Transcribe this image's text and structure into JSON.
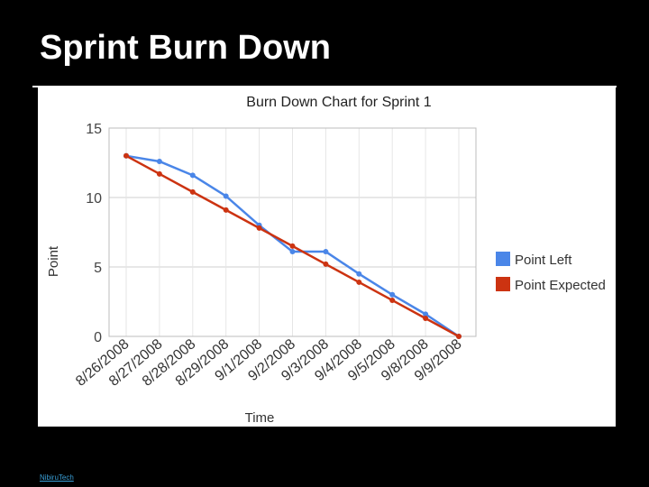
{
  "slide": {
    "title": "Sprint Burn Down",
    "footer": "NibiruTech"
  },
  "chart_data": {
    "type": "line",
    "title": "Burn Down Chart for Sprint 1",
    "xlabel": "Time",
    "ylabel": "Point",
    "ylim": [
      0,
      15
    ],
    "yticks": [
      "0",
      "5",
      "10",
      "15"
    ],
    "grid": true,
    "legend_position": "right",
    "categories": [
      "8/26/2008",
      "8/27/2008",
      "8/28/2008",
      "8/29/2008",
      "9/1/2008",
      "9/2/2008",
      "9/3/2008",
      "9/4/2008",
      "9/5/2008",
      "9/8/2008",
      "9/9/2008"
    ],
    "series": [
      {
        "name": "Point Left",
        "color": "#4a86e8",
        "values": [
          13,
          12.6,
          11.6,
          10.1,
          8.0,
          6.1,
          6.1,
          4.5,
          3.0,
          1.6,
          0
        ]
      },
      {
        "name": "Point Expected",
        "color": "#cc3311",
        "values": [
          13,
          11.7,
          10.4,
          9.1,
          7.8,
          6.5,
          5.2,
          3.9,
          2.6,
          1.3,
          0
        ]
      }
    ]
  }
}
